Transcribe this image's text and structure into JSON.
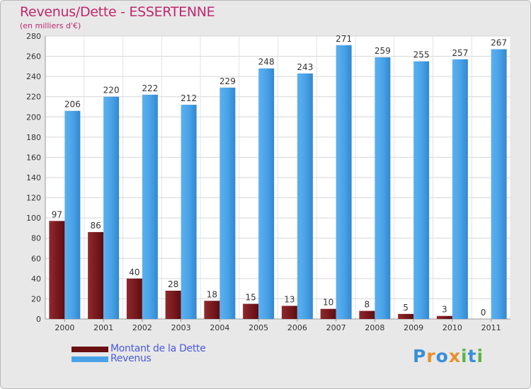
{
  "header": {
    "title": "Revenus/Dette - ESSERTENNE",
    "subtitle": "(en milliers d'€)"
  },
  "chart_data": {
    "type": "bar",
    "title": "Revenus/Dette - ESSERTENNE",
    "subtitle": "(en milliers d'€)",
    "xlabel": "",
    "ylabel": "",
    "categories": [
      "2000",
      "2001",
      "2002",
      "2003",
      "2004",
      "2005",
      "2006",
      "2007",
      "2008",
      "2009",
      "2010",
      "2011"
    ],
    "ylim": [
      0,
      280
    ],
    "yticks": [
      0,
      20,
      40,
      60,
      80,
      100,
      120,
      140,
      160,
      180,
      200,
      220,
      240,
      260,
      280
    ],
    "grid": true,
    "legend_position": "bottom-left",
    "series": [
      {
        "name": "Montant de la Dette",
        "color": "#7a1a1e",
        "values": [
          97,
          86,
          40,
          28,
          18,
          15,
          13,
          10,
          8,
          5,
          3,
          0
        ]
      },
      {
        "name": "Revenus",
        "color": "#4aa3e8",
        "values": [
          206,
          220,
          222,
          212,
          229,
          248,
          243,
          271,
          259,
          255,
          257,
          267
        ]
      }
    ]
  },
  "legend": {
    "items": [
      {
        "label": "Montant de la Dette",
        "color": "#7a1a1e"
      },
      {
        "label": "Revenus",
        "color": "#4aa3e8"
      }
    ]
  },
  "logo": {
    "letters": [
      "P",
      "r",
      "o",
      "x",
      "i",
      "t",
      "i"
    ],
    "colors": [
      "#3a8fd6",
      "#e8912a",
      "#3a8fd6",
      "#e8912a",
      "#5cb548",
      "#3a8fd6",
      "#5cb548"
    ]
  }
}
